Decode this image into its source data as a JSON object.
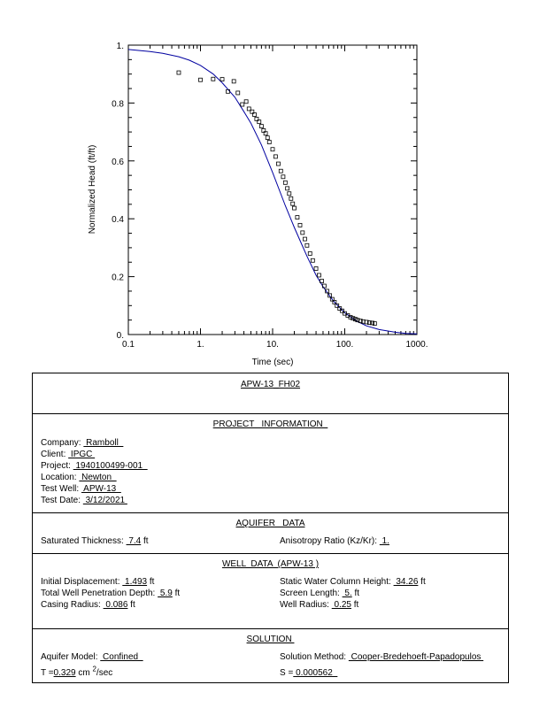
{
  "chart_data": {
    "type": "scatter",
    "xscale": "log",
    "xlim": [
      0.1,
      1000
    ],
    "ylim": [
      0,
      1
    ],
    "xticks": [
      "0.1",
      "1.",
      "10.",
      "100.",
      "1000."
    ],
    "yticks": [
      "0.",
      "0.2",
      "0.4",
      "0.6",
      "0.8",
      "1."
    ],
    "xlabel": "Time  (sec)",
    "ylabel": "Normalized Head (ft/ft)",
    "grid": false,
    "series": [
      {
        "marker": "square",
        "color": "#000000",
        "x": [
          0.5,
          1,
          1.5,
          2,
          2.4,
          2.9,
          3.3,
          3.8,
          4.3,
          4.7,
          5.2,
          5.6,
          6.0,
          6.5,
          7.0,
          7.5,
          8.0,
          8.5,
          9.0,
          10,
          11,
          12,
          13,
          14,
          15,
          16,
          17,
          18,
          19,
          20,
          22,
          24,
          26,
          28,
          30,
          33,
          36,
          40,
          44,
          48,
          52,
          57,
          62,
          67,
          72,
          78,
          85,
          92,
          100,
          110,
          120,
          130,
          140,
          150,
          165,
          180,
          200,
          220,
          240,
          260
        ],
        "y": [
          0.905,
          0.88,
          0.883,
          0.882,
          0.84,
          0.875,
          0.835,
          0.795,
          0.805,
          0.78,
          0.77,
          0.76,
          0.745,
          0.735,
          0.72,
          0.705,
          0.695,
          0.68,
          0.665,
          0.64,
          0.615,
          0.59,
          0.565,
          0.545,
          0.525,
          0.505,
          0.487,
          0.47,
          0.452,
          0.437,
          0.405,
          0.378,
          0.352,
          0.33,
          0.308,
          0.28,
          0.256,
          0.228,
          0.205,
          0.185,
          0.168,
          0.15,
          0.135,
          0.122,
          0.112,
          0.1,
          0.09,
          0.082,
          0.073,
          0.066,
          0.06,
          0.056,
          0.053,
          0.05,
          0.047,
          0.045,
          0.043,
          0.041,
          0.04,
          0.038
        ]
      },
      {
        "type": "line",
        "color": "#0000a0",
        "x": [
          0.1,
          0.2,
          0.3,
          0.5,
          0.7,
          1,
          1.5,
          2,
          3,
          4,
          5,
          7,
          10,
          15,
          20,
          25,
          30,
          40,
          50,
          70,
          100,
          150,
          200,
          300,
          500,
          700,
          1000
        ],
        "y": [
          0.985,
          0.978,
          0.972,
          0.96,
          0.948,
          0.93,
          0.9,
          0.87,
          0.82,
          0.77,
          0.73,
          0.655,
          0.56,
          0.445,
          0.37,
          0.315,
          0.27,
          0.205,
          0.165,
          0.115,
          0.075,
          0.045,
          0.03,
          0.017,
          0.008,
          0.004,
          0.002
        ]
      }
    ]
  },
  "report": {
    "title": "APW-13_FH02",
    "project": {
      "heading": "PROJECT   INFORMATION  ",
      "company_label": "Company:",
      "company": " Ramboll  ",
      "client_label": "Client:",
      "client": " IPGC ",
      "project_label": "Project:",
      "project": " 1940100499-001  ",
      "location_label": "Location:",
      "location": " Newton  ",
      "test_well_label": "Test Well:",
      "test_well": " APW-13  ",
      "test_date_label": "Test Date:",
      "test_date": " 3/12/2021 "
    },
    "aquifer": {
      "heading": "AQUIFER   DATA",
      "sat_thickness_label": "Saturated  Thickness:",
      "sat_thickness": " 7.4",
      "sat_thickness_unit": " ft",
      "anisotropy_label": "Anisotropy  Ratio  (Kz/Kr):",
      "anisotropy": " 1."
    },
    "well": {
      "heading": "WELL  DATA  (APW-13 )",
      "init_disp_label": "Initial  Displacement:",
      "init_disp": " 1.493",
      "init_disp_unit": " ft",
      "penetration_label": "Total  Well  Penetration  Depth:",
      "penetration": " 5.9",
      "penetration_unit": " ft",
      "casing_label": "Casing  Radius:",
      "casing": " 0.086",
      "casing_unit": " ft",
      "static_label": "Static  Water  Column  Height:",
      "static": " 34.26",
      "static_unit": " ft",
      "screen_label": "Screen  Length:",
      "screen": " 5.",
      "screen_unit": " ft",
      "radius_label": "Well  Radius:",
      "radius": " 0.25",
      "radius_unit": " ft"
    },
    "solution": {
      "heading": "SOLUTION ",
      "model_label": "Aquifer  Model:",
      "model": " Confined  ",
      "method_label": "Solution  Method:",
      "method": " Cooper-Bredehoeft-Papadopulos ",
      "t_label": "T =",
      "t_value": "0.329",
      "t_unit_pre": " cm ",
      "t_unit_sup": "2",
      "t_unit_post": "/sec",
      "s_label": "S =",
      "s_value": " 0.000562  "
    }
  }
}
